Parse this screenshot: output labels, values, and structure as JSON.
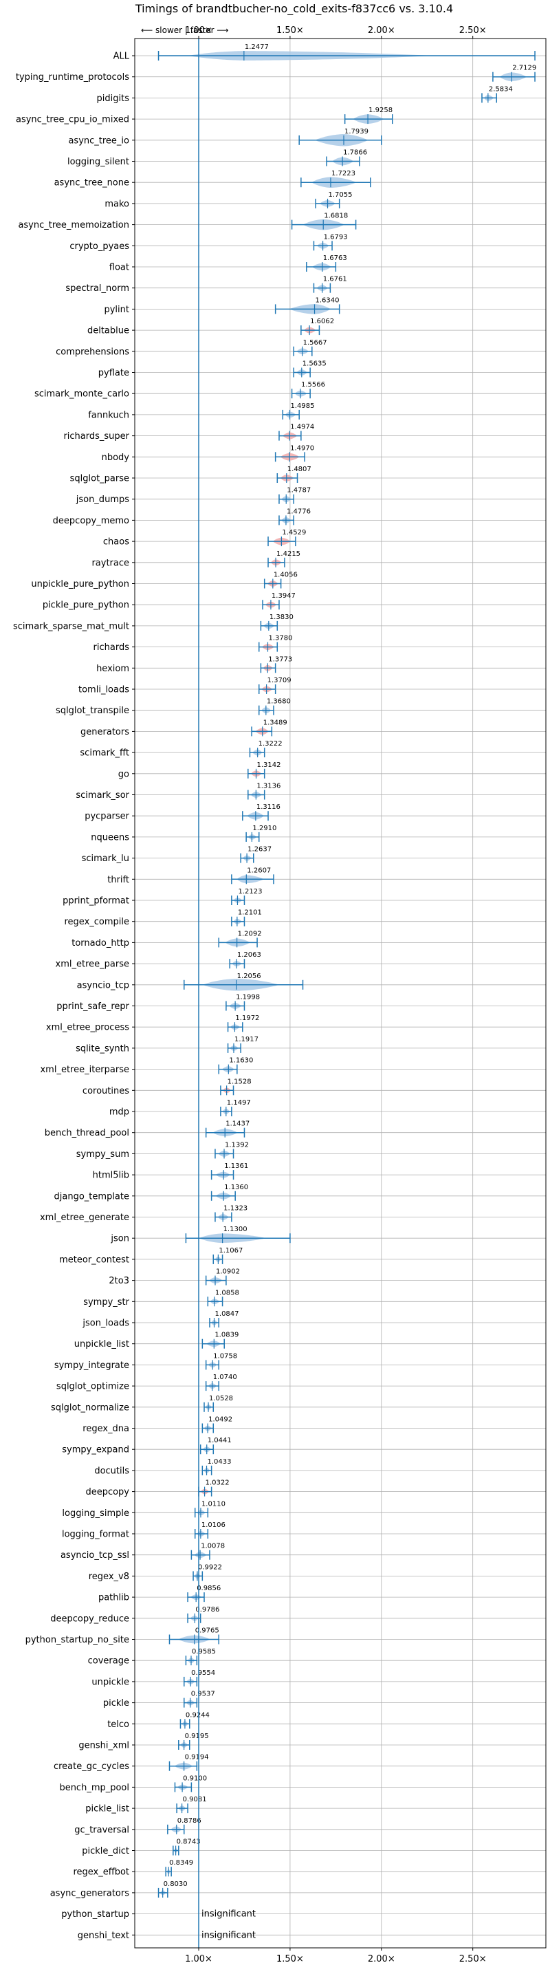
{
  "chart_data": {
    "type": "violin",
    "title": "Timings of brandtbucher-no_cold_exits-f837cc6 vs. 3.10.4",
    "direction_label": "⟵ slower | faster ⟶",
    "xlim": [
      0.65,
      2.9
    ],
    "x_ticks": [
      {
        "value": 1.0,
        "label": "1.00×"
      },
      {
        "value": 1.5,
        "label": "1.50×"
      },
      {
        "value": 2.0,
        "label": "2.00×"
      },
      {
        "value": 2.5,
        "label": "2.50×"
      }
    ],
    "reference_line": 1.0,
    "grid": true,
    "colors": {
      "violin": "#a9c9e6",
      "violin_significant_slower": "#f1a9a9",
      "whisker": "#1f77b4",
      "grid": "#b0b0b0"
    },
    "benchmarks": [
      {
        "name": "ALL",
        "mean": 1.2477,
        "label": "1.2477",
        "min": 0.78,
        "max": 2.84,
        "spread": 0.08,
        "wide": true
      },
      {
        "name": "typing_runtime_protocols",
        "mean": 2.7129,
        "label": "2.7129",
        "min": 2.61,
        "max": 2.84,
        "spread": 0.07
      },
      {
        "name": "pidigits",
        "mean": 2.5834,
        "label": "2.5834",
        "min": 2.55,
        "max": 2.63,
        "spread": 0.03
      },
      {
        "name": "async_tree_cpu_io_mixed",
        "mean": 1.9258,
        "label": "1.9258",
        "min": 1.8,
        "max": 2.06,
        "spread": 0.08
      },
      {
        "name": "async_tree_io",
        "mean": 1.7939,
        "label": "1.7939",
        "min": 1.55,
        "max": 2.0,
        "spread": 0.12
      },
      {
        "name": "logging_silent",
        "mean": 1.7866,
        "label": "1.7866",
        "min": 1.7,
        "max": 1.88,
        "spread": 0.06
      },
      {
        "name": "async_tree_none",
        "mean": 1.7223,
        "label": "1.7223",
        "min": 1.56,
        "max": 1.94,
        "spread": 0.1
      },
      {
        "name": "mako",
        "mean": 1.7055,
        "label": "1.7055",
        "min": 1.64,
        "max": 1.77,
        "spread": 0.04
      },
      {
        "name": "async_tree_memoization",
        "mean": 1.6818,
        "label": "1.6818",
        "min": 1.51,
        "max": 1.86,
        "spread": 0.1
      },
      {
        "name": "crypto_pyaes",
        "mean": 1.6793,
        "label": "1.6793",
        "min": 1.63,
        "max": 1.73,
        "spread": 0.03
      },
      {
        "name": "float",
        "mean": 1.6763,
        "label": "1.6763",
        "min": 1.59,
        "max": 1.75,
        "spread": 0.05
      },
      {
        "name": "spectral_norm",
        "mean": 1.6761,
        "label": "1.6761",
        "min": 1.63,
        "max": 1.72,
        "spread": 0.03
      },
      {
        "name": "pylint",
        "mean": 1.634,
        "label": "1.6340",
        "min": 1.42,
        "max": 1.77,
        "spread": 0.09
      },
      {
        "name": "deltablue",
        "mean": 1.6062,
        "label": "1.6062",
        "min": 1.56,
        "max": 1.66,
        "spread": 0.03,
        "sig": true
      },
      {
        "name": "comprehensions",
        "mean": 1.5667,
        "label": "1.5667",
        "min": 1.52,
        "max": 1.62,
        "spread": 0.03
      },
      {
        "name": "pyflate",
        "mean": 1.5635,
        "label": "1.5635",
        "min": 1.52,
        "max": 1.61,
        "spread": 0.03
      },
      {
        "name": "scimark_monte_carlo",
        "mean": 1.5566,
        "label": "1.5566",
        "min": 1.51,
        "max": 1.61,
        "spread": 0.03
      },
      {
        "name": "fannkuch",
        "mean": 1.4985,
        "label": "1.4985",
        "min": 1.46,
        "max": 1.55,
        "spread": 0.03
      },
      {
        "name": "richards_super",
        "mean": 1.4974,
        "label": "1.4974",
        "min": 1.44,
        "max": 1.56,
        "spread": 0.04,
        "sig": true
      },
      {
        "name": "nbody",
        "mean": 1.497,
        "label": "1.4970",
        "min": 1.42,
        "max": 1.58,
        "spread": 0.05,
        "sig": true
      },
      {
        "name": "sqlglot_parse",
        "mean": 1.4807,
        "label": "1.4807",
        "min": 1.43,
        "max": 1.54,
        "spread": 0.04,
        "sig": true
      },
      {
        "name": "json_dumps",
        "mean": 1.4787,
        "label": "1.4787",
        "min": 1.44,
        "max": 1.52,
        "spread": 0.03
      },
      {
        "name": "deepcopy_memo",
        "mean": 1.4776,
        "label": "1.4776",
        "min": 1.44,
        "max": 1.52,
        "spread": 0.03
      },
      {
        "name": "chaos",
        "mean": 1.4529,
        "label": "1.4529",
        "min": 1.38,
        "max": 1.53,
        "spread": 0.05,
        "sig": true
      },
      {
        "name": "raytrace",
        "mean": 1.4215,
        "label": "1.4215",
        "min": 1.38,
        "max": 1.47,
        "spread": 0.03,
        "sig": true
      },
      {
        "name": "unpickle_pure_python",
        "mean": 1.4056,
        "label": "1.4056",
        "min": 1.36,
        "max": 1.45,
        "spread": 0.03,
        "sig": true
      },
      {
        "name": "pickle_pure_python",
        "mean": 1.3947,
        "label": "1.3947",
        "min": 1.35,
        "max": 1.44,
        "spread": 0.03,
        "sig": true
      },
      {
        "name": "scimark_sparse_mat_mult",
        "mean": 1.383,
        "label": "1.3830",
        "min": 1.34,
        "max": 1.43,
        "spread": 0.03
      },
      {
        "name": "richards",
        "mean": 1.378,
        "label": "1.3780",
        "min": 1.33,
        "max": 1.43,
        "spread": 0.03,
        "sig": true
      },
      {
        "name": "hexiom",
        "mean": 1.3773,
        "label": "1.3773",
        "min": 1.34,
        "max": 1.42,
        "spread": 0.03,
        "sig": true
      },
      {
        "name": "tomli_loads",
        "mean": 1.3709,
        "label": "1.3709",
        "min": 1.33,
        "max": 1.42,
        "spread": 0.03,
        "sig": true
      },
      {
        "name": "sqlglot_transpile",
        "mean": 1.368,
        "label": "1.3680",
        "min": 1.33,
        "max": 1.41,
        "spread": 0.03
      },
      {
        "name": "generators",
        "mean": 1.3489,
        "label": "1.3489",
        "min": 1.29,
        "max": 1.4,
        "spread": 0.04,
        "sig": true
      },
      {
        "name": "scimark_fft",
        "mean": 1.3222,
        "label": "1.3222",
        "min": 1.28,
        "max": 1.36,
        "spread": 0.03
      },
      {
        "name": "go",
        "mean": 1.3142,
        "label": "1.3142",
        "min": 1.27,
        "max": 1.36,
        "spread": 0.03,
        "sig": true
      },
      {
        "name": "scimark_sor",
        "mean": 1.3136,
        "label": "1.3136",
        "min": 1.27,
        "max": 1.36,
        "spread": 0.03
      },
      {
        "name": "pycparser",
        "mean": 1.3116,
        "label": "1.3116",
        "min": 1.24,
        "max": 1.38,
        "spread": 0.05
      },
      {
        "name": "nqueens",
        "mean": 1.291,
        "label": "1.2910",
        "min": 1.26,
        "max": 1.33,
        "spread": 0.02
      },
      {
        "name": "scimark_lu",
        "mean": 1.2637,
        "label": "1.2637",
        "min": 1.23,
        "max": 1.3,
        "spread": 0.02
      },
      {
        "name": "thrift",
        "mean": 1.2607,
        "label": "1.2607",
        "min": 1.18,
        "max": 1.41,
        "spread": 0.06
      },
      {
        "name": "pprint_pformat",
        "mean": 1.2123,
        "label": "1.2123",
        "min": 1.18,
        "max": 1.25,
        "spread": 0.02
      },
      {
        "name": "regex_compile",
        "mean": 1.2101,
        "label": "1.2101",
        "min": 1.18,
        "max": 1.25,
        "spread": 0.02
      },
      {
        "name": "tornado_http",
        "mean": 1.2092,
        "label": "1.2092",
        "min": 1.11,
        "max": 1.32,
        "spread": 0.06
      },
      {
        "name": "xml_etree_parse",
        "mean": 1.2063,
        "label": "1.2063",
        "min": 1.17,
        "max": 1.25,
        "spread": 0.02
      },
      {
        "name": "asyncio_tcp",
        "mean": 1.2056,
        "label": "1.2056",
        "min": 0.92,
        "max": 1.57,
        "spread": 0.12
      },
      {
        "name": "pprint_safe_repr",
        "mean": 1.1998,
        "label": "1.1998",
        "min": 1.15,
        "max": 1.25,
        "spread": 0.03
      },
      {
        "name": "xml_etree_process",
        "mean": 1.1972,
        "label": "1.1972",
        "min": 1.16,
        "max": 1.24,
        "spread": 0.02
      },
      {
        "name": "sqlite_synth",
        "mean": 1.1917,
        "label": "1.1917",
        "min": 1.16,
        "max": 1.23,
        "spread": 0.02
      },
      {
        "name": "xml_etree_iterparse",
        "mean": 1.163,
        "label": "1.1630",
        "min": 1.11,
        "max": 1.21,
        "spread": 0.03
      },
      {
        "name": "coroutines",
        "mean": 1.1528,
        "label": "1.1528",
        "min": 1.12,
        "max": 1.19,
        "spread": 0.02,
        "sig": true
      },
      {
        "name": "mdp",
        "mean": 1.1497,
        "label": "1.1497",
        "min": 1.12,
        "max": 1.18,
        "spread": 0.02
      },
      {
        "name": "bench_thread_pool",
        "mean": 1.1437,
        "label": "1.1437",
        "min": 1.04,
        "max": 1.25,
        "spread": 0.05
      },
      {
        "name": "sympy_sum",
        "mean": 1.1392,
        "label": "1.1392",
        "min": 1.09,
        "max": 1.19,
        "spread": 0.03
      },
      {
        "name": "html5lib",
        "mean": 1.1361,
        "label": "1.1361",
        "min": 1.07,
        "max": 1.19,
        "spread": 0.03
      },
      {
        "name": "django_template",
        "mean": 1.136,
        "label": "1.1360",
        "min": 1.07,
        "max": 1.2,
        "spread": 0.04
      },
      {
        "name": "xml_etree_generate",
        "mean": 1.1323,
        "label": "1.1323",
        "min": 1.09,
        "max": 1.18,
        "spread": 0.03
      },
      {
        "name": "json",
        "mean": 1.13,
        "label": "1.1300",
        "min": 0.93,
        "max": 1.5,
        "spread": 0.08,
        "wide": true
      },
      {
        "name": "meteor_contest",
        "mean": 1.1067,
        "label": "1.1067",
        "min": 1.08,
        "max": 1.13,
        "spread": 0.02
      },
      {
        "name": "2to3",
        "mean": 1.0902,
        "label": "1.0902",
        "min": 1.04,
        "max": 1.15,
        "spread": 0.03
      },
      {
        "name": "sympy_str",
        "mean": 1.0858,
        "label": "1.0858",
        "min": 1.05,
        "max": 1.13,
        "spread": 0.02
      },
      {
        "name": "json_loads",
        "mean": 1.0847,
        "label": "1.0847",
        "min": 1.06,
        "max": 1.11,
        "spread": 0.02
      },
      {
        "name": "unpickle_list",
        "mean": 1.0839,
        "label": "1.0839",
        "min": 1.02,
        "max": 1.14,
        "spread": 0.03
      },
      {
        "name": "sympy_integrate",
        "mean": 1.0758,
        "label": "1.0758",
        "min": 1.04,
        "max": 1.11,
        "spread": 0.02
      },
      {
        "name": "sqlglot_optimize",
        "mean": 1.074,
        "label": "1.0740",
        "min": 1.04,
        "max": 1.11,
        "spread": 0.02
      },
      {
        "name": "sqlglot_normalize",
        "mean": 1.0528,
        "label": "1.0528",
        "min": 1.03,
        "max": 1.08,
        "spread": 0.02
      },
      {
        "name": "regex_dna",
        "mean": 1.0492,
        "label": "1.0492",
        "min": 1.02,
        "max": 1.08,
        "spread": 0.02
      },
      {
        "name": "sympy_expand",
        "mean": 1.0441,
        "label": "1.0441",
        "min": 1.01,
        "max": 1.08,
        "spread": 0.02
      },
      {
        "name": "docutils",
        "mean": 1.0433,
        "label": "1.0433",
        "min": 1.02,
        "max": 1.07,
        "spread": 0.02
      },
      {
        "name": "deepcopy",
        "mean": 1.0322,
        "label": "1.0322",
        "min": 1.0,
        "max": 1.07,
        "spread": 0.02,
        "sig": true
      },
      {
        "name": "logging_simple",
        "mean": 1.011,
        "label": "1.0110",
        "min": 0.98,
        "max": 1.05,
        "spread": 0.02
      },
      {
        "name": "logging_format",
        "mean": 1.0106,
        "label": "1.0106",
        "min": 0.98,
        "max": 1.05,
        "spread": 0.02
      },
      {
        "name": "asyncio_tcp_ssl",
        "mean": 1.0078,
        "label": "1.0078",
        "min": 0.96,
        "max": 1.06,
        "spread": 0.03
      },
      {
        "name": "regex_v8",
        "mean": 0.9922,
        "label": "0.9922",
        "min": 0.97,
        "max": 1.02,
        "spread": 0.02
      },
      {
        "name": "pathlib",
        "mean": 0.9856,
        "label": "0.9856",
        "min": 0.94,
        "max": 1.03,
        "spread": 0.02
      },
      {
        "name": "deepcopy_reduce",
        "mean": 0.9786,
        "label": "0.9786",
        "min": 0.94,
        "max": 1.01,
        "spread": 0.02
      },
      {
        "name": "python_startup_no_site",
        "mean": 0.9765,
        "label": "0.9765",
        "min": 0.84,
        "max": 1.11,
        "spread": 0.06
      },
      {
        "name": "coverage",
        "mean": 0.9585,
        "label": "0.9585",
        "min": 0.93,
        "max": 0.99,
        "spread": 0.02
      },
      {
        "name": "unpickle",
        "mean": 0.9554,
        "label": "0.9554",
        "min": 0.92,
        "max": 0.99,
        "spread": 0.02
      },
      {
        "name": "pickle",
        "mean": 0.9537,
        "label": "0.9537",
        "min": 0.92,
        "max": 0.99,
        "spread": 0.02
      },
      {
        "name": "telco",
        "mean": 0.9244,
        "label": "0.9244",
        "min": 0.9,
        "max": 0.95,
        "spread": 0.02
      },
      {
        "name": "genshi_xml",
        "mean": 0.9195,
        "label": "0.9195",
        "min": 0.89,
        "max": 0.95,
        "spread": 0.02
      },
      {
        "name": "create_gc_cycles",
        "mean": 0.9194,
        "label": "0.9194",
        "min": 0.84,
        "max": 0.99,
        "spread": 0.04
      },
      {
        "name": "bench_mp_pool",
        "mean": 0.91,
        "label": "0.9100",
        "min": 0.87,
        "max": 0.96,
        "spread": 0.02
      },
      {
        "name": "pickle_list",
        "mean": 0.9081,
        "label": "0.9081",
        "min": 0.88,
        "max": 0.94,
        "spread": 0.02
      },
      {
        "name": "gc_traversal",
        "mean": 0.8786,
        "label": "0.8786",
        "min": 0.83,
        "max": 0.92,
        "spread": 0.03
      },
      {
        "name": "pickle_dict",
        "mean": 0.8743,
        "label": "0.8743",
        "min": 0.86,
        "max": 0.89,
        "spread": 0.01
      },
      {
        "name": "regex_effbot",
        "mean": 0.8349,
        "label": "0.8349",
        "min": 0.82,
        "max": 0.85,
        "spread": 0.01
      },
      {
        "name": "async_generators",
        "mean": 0.803,
        "label": "0.8030",
        "min": 0.78,
        "max": 0.83,
        "spread": 0.01
      },
      {
        "name": "python_startup",
        "insignificant": true,
        "label": "insignificant"
      },
      {
        "name": "genshi_text",
        "insignificant": true,
        "label": "insignificant"
      }
    ]
  }
}
